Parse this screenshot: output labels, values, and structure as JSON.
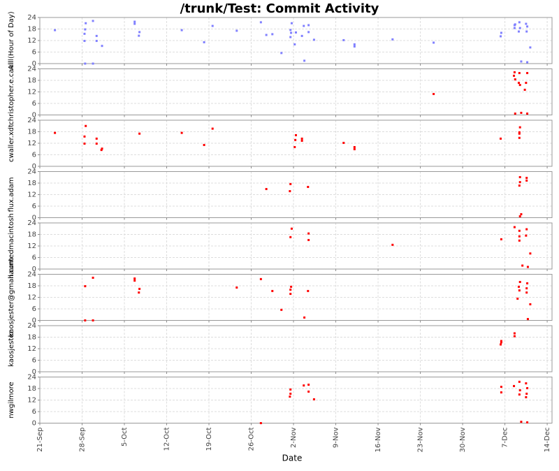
{
  "title": "/trunk/Test: Commit Activity",
  "x_label": "Date",
  "xlim": [
    0,
    84.8
  ],
  "xticks": [
    {
      "value": 0,
      "label": "21-Sep"
    },
    {
      "value": 7,
      "label": "28-Sep"
    },
    {
      "value": 14,
      "label": "5-Oct"
    },
    {
      "value": 21,
      "label": "12-Oct"
    },
    {
      "value": 28,
      "label": "19-Oct"
    },
    {
      "value": 35,
      "label": "26-Oct"
    },
    {
      "value": 42,
      "label": "2-Nov"
    },
    {
      "value": 49,
      "label": "9-Nov"
    },
    {
      "value": 56,
      "label": "16-Nov"
    },
    {
      "value": 63,
      "label": "23-Nov"
    },
    {
      "value": 70,
      "label": "30-Nov"
    },
    {
      "value": 77,
      "label": "7-Dec"
    },
    {
      "value": 84,
      "label": "14-Dec"
    }
  ],
  "chart_data": [
    {
      "type": "scatter",
      "y_label": "All (Hour of Day)",
      "color": "#8080ff",
      "grid": true,
      "ylim": [
        0,
        24
      ],
      "yticks": [
        0,
        6,
        12,
        18,
        24
      ],
      "x": [
        2.5,
        7.6,
        7.4,
        7.4,
        7.5,
        8.8,
        9.4,
        9.4,
        10.3,
        15.7,
        15.7,
        16.5,
        16.4,
        23.5,
        27.2,
        28.6,
        32.6,
        36.6,
        37.5,
        38.5,
        40,
        41.5,
        41.5,
        41.6,
        41.7,
        42.2,
        42.4,
        43.4,
        43.7,
        43.8,
        44.5,
        44.5,
        45.4,
        50.3,
        52.1,
        52.1,
        58.4,
        65.2,
        76.3,
        76.4,
        78.6,
        78.6,
        78.7,
        79.3,
        79.4,
        79.5,
        79.7,
        80.5,
        80.6,
        80.7,
        80.7,
        81.2,
        7.5,
        8.8
      ],
      "y": [
        17.4,
        21,
        15.5,
        11.8,
        17.8,
        22.2,
        14.4,
        11.8,
        9.2,
        20.7,
        21.8,
        16.4,
        14.5,
        17.4,
        11.1,
        19.6,
        17.1,
        21.5,
        14.9,
        15.3,
        5.5,
        17.5,
        13.8,
        16,
        21,
        10,
        16.2,
        14.4,
        19.6,
        1.5,
        20,
        16.4,
        12.4,
        12.2,
        10,
        8.9,
        12.6,
        10.9,
        14.2,
        16,
        20,
        18.5,
        20.4,
        16.7,
        21.5,
        18.5,
        1.1,
        20.7,
        16.7,
        19.3,
        0.7,
        8.4,
        0,
        0
      ]
    },
    {
      "type": "scatter",
      "y_label": "christopher.e.cavill",
      "color": "#ff0000",
      "grid": true,
      "ylim": [
        0,
        24
      ],
      "yticks": [
        0,
        6,
        12,
        18,
        24
      ],
      "x": [
        65.2,
        78.5,
        78.6,
        78.7,
        79.3,
        79.5,
        79.4,
        80.3,
        80.5,
        80.7,
        78.7,
        79.7,
        80.7
      ],
      "y": [
        10.9,
        20.4,
        22.2,
        18.5,
        16.7,
        15.6,
        21.8,
        13.1,
        16.7,
        21.8,
        0.7,
        1.1,
        0.7
      ]
    },
    {
      "type": "scatter",
      "y_label": "cwaller.xdt",
      "color": "#ff0000",
      "grid": true,
      "ylim": [
        0,
        24
      ],
      "yticks": [
        0,
        6,
        12,
        18,
        24
      ],
      "x": [
        2.5,
        7.6,
        7.4,
        7.4,
        9.4,
        9.4,
        10.3,
        10.2,
        16.5,
        23.5,
        28.6,
        27.2,
        42.2,
        42.3,
        42.4,
        43.4,
        43.4,
        50.3,
        52.1,
        52.1,
        76.3,
        79.4,
        79.5,
        79.4,
        79.4
      ],
      "y": [
        17.4,
        21,
        15.5,
        11.8,
        14.4,
        11.8,
        9.2,
        8.5,
        17,
        17.4,
        19.6,
        11.1,
        10,
        13.7,
        16.2,
        14.4,
        13.3,
        12.2,
        10,
        8.9,
        14.4,
        17.7,
        20.3,
        14.8,
        17
      ]
    },
    {
      "type": "scatter",
      "y_label": "flux.adam",
      "color": "#ff0000",
      "grid": true,
      "ylim": [
        0,
        24
      ],
      "yticks": [
        0,
        6,
        12,
        18,
        24
      ],
      "x": [
        37.5,
        41.4,
        41.5,
        44.4,
        79.5,
        79.4,
        79.5,
        80.6,
        80.6,
        79.7,
        79.5
      ],
      "y": [
        14.9,
        13.8,
        17.5,
        16,
        21.1,
        16.7,
        18.5,
        20.7,
        19.3,
        1.8,
        0.7
      ]
    },
    {
      "type": "scatter",
      "y_label": "hauntedmacintosh",
      "color": "#ff0000",
      "grid": true,
      "ylim": [
        0,
        24
      ],
      "yticks": [
        0,
        6,
        12,
        18,
        24
      ],
      "x": [
        41.7,
        41.5,
        44.5,
        44.5,
        58.4,
        76.4,
        78.6,
        79.4,
        79.4,
        79.4,
        79.9,
        80.5,
        80.6,
        81.2,
        80.8
      ],
      "y": [
        21,
        16.6,
        18.5,
        15.1,
        12.6,
        15.5,
        21.8,
        19.9,
        17,
        14.8,
        1.8,
        17.4,
        20.7,
        8.1,
        1.1
      ]
    },
    {
      "type": "scatter",
      "y_label": "kaosjester@gmail.com",
      "color": "#ff0000",
      "grid": true,
      "ylim": [
        0,
        24
      ],
      "yticks": [
        0,
        6,
        12,
        18,
        24
      ],
      "x": [
        7.5,
        8.8,
        15.7,
        15.7,
        16.5,
        16.4,
        32.6,
        36.6,
        38.5,
        40,
        41.5,
        41.6,
        41.5,
        43.8,
        44.4,
        79.1,
        79.3,
        79.4,
        79.5,
        80.6,
        80.7,
        80.6,
        81.2,
        80.8,
        7.5,
        8.8
      ],
      "y": [
        17.8,
        22.2,
        20.7,
        21.8,
        16.4,
        14.5,
        17.1,
        21.5,
        15.3,
        5.5,
        13.8,
        17.5,
        16,
        1.5,
        15.3,
        11.3,
        17.5,
        15.6,
        20,
        16.7,
        19.3,
        14.5,
        8.4,
        0.7,
        0,
        0
      ]
    },
    {
      "type": "scatter",
      "y_label": "kaosjester",
      "color": "#ff0000",
      "grid": true,
      "ylim": [
        0,
        24
      ],
      "yticks": [
        0,
        6,
        12,
        18,
        24
      ],
      "x": [
        76.3,
        76.4,
        76.4,
        78.6,
        78.6
      ],
      "y": [
        14.2,
        16,
        15.3,
        20,
        18.5
      ]
    },
    {
      "type": "scatter",
      "y_label": "nwgilmore",
      "color": "#ff0000",
      "grid": true,
      "ylim": [
        0,
        24
      ],
      "yticks": [
        0,
        6,
        12,
        18,
        24
      ],
      "x": [
        36.6,
        41.5,
        41.4,
        41.5,
        43.7,
        44.5,
        44.5,
        45.4,
        76.4,
        76.4,
        78.5,
        79.4,
        79.5,
        79.4,
        80.5,
        80.6,
        80.5,
        80.7,
        79.7,
        80.7
      ],
      "y": [
        0,
        17.5,
        13.8,
        15.3,
        19.6,
        20,
        16.4,
        12.4,
        18.9,
        16,
        19.3,
        21.5,
        17.1,
        14.9,
        20.7,
        15.3,
        13.5,
        18.2,
        0.7,
        0.4
      ]
    }
  ]
}
